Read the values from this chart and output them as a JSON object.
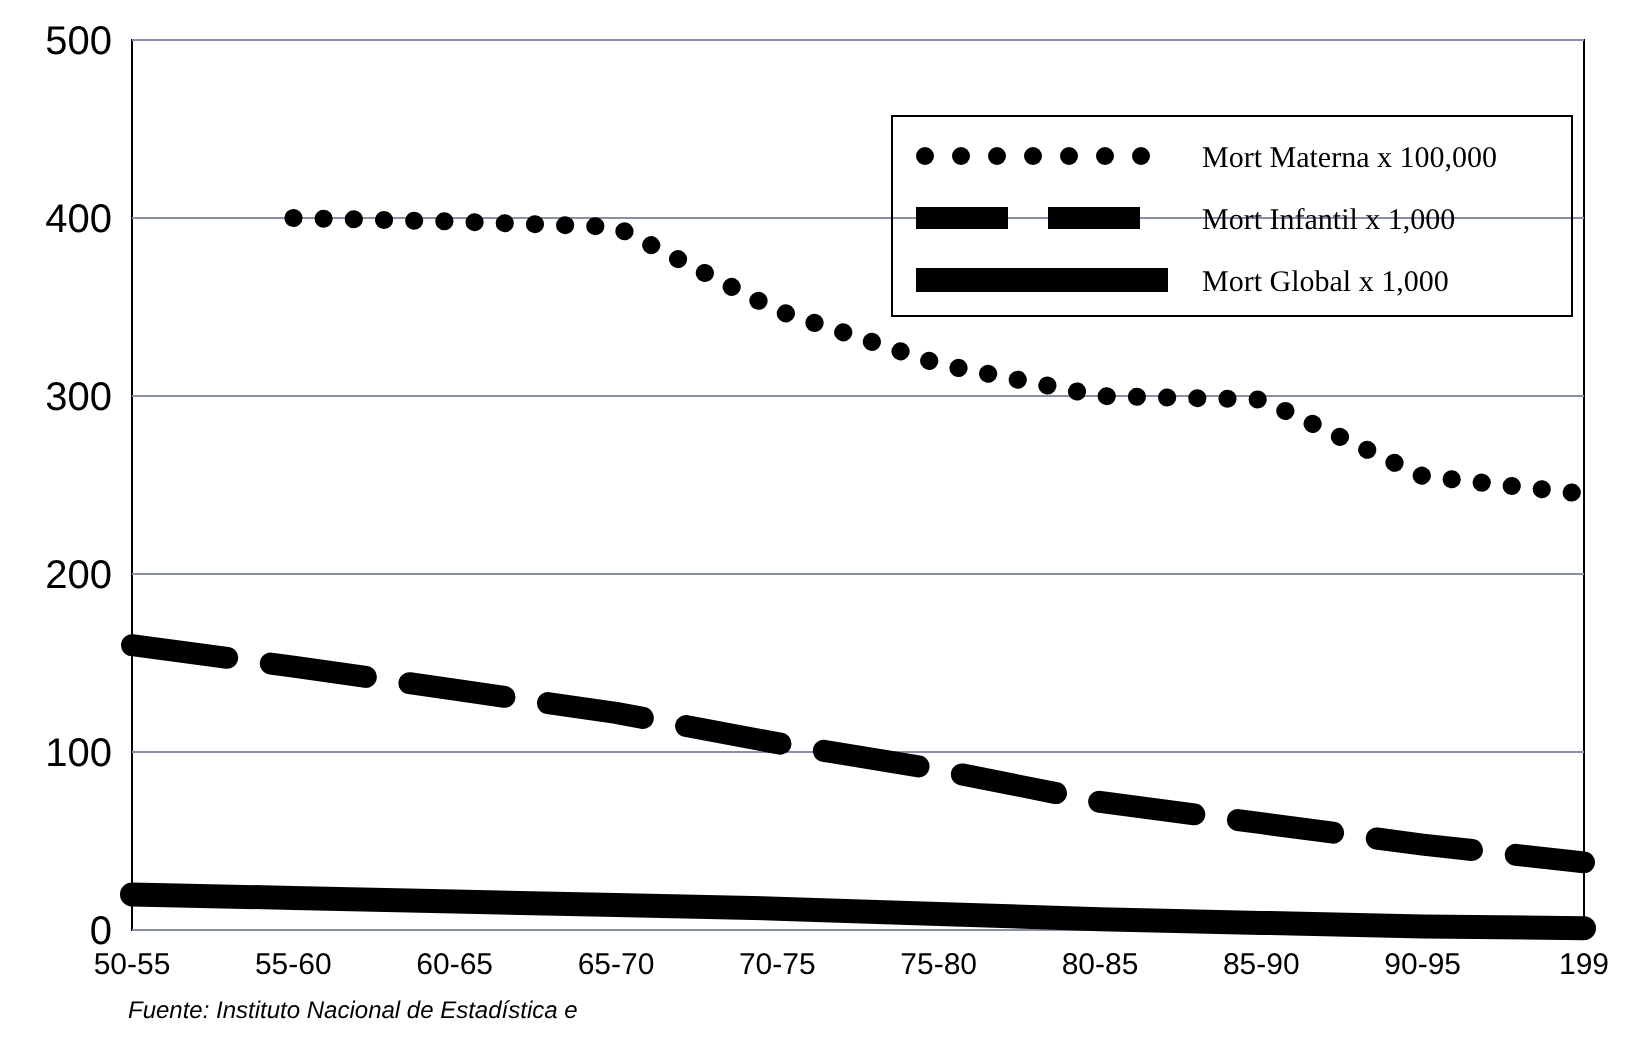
{
  "chart_data": {
    "type": "line",
    "categories": [
      "50-55",
      "55-60",
      "60-65",
      "65-70",
      "70-75",
      "75-80",
      "80-85",
      "85-90",
      "90-95",
      "199"
    ],
    "series": [
      {
        "name": "Mort Materna x 100,000",
        "color": "#000000",
        "line_style": "dotted",
        "values": [
          null,
          400,
          398,
          395,
          348,
          318,
          300,
          298,
          255,
          245
        ]
      },
      {
        "name": "Mort Infantil x 1,000",
        "color": "#000000",
        "line_style": "dashed",
        "values": [
          160,
          148,
          135,
          122,
          105,
          90,
          72,
          60,
          48,
          38
        ]
      },
      {
        "name": "Mort Global x 1,000",
        "color": "#000000",
        "line_style": "solid",
        "values": [
          20,
          18,
          16,
          14,
          12,
          9,
          6,
          4,
          2,
          1
        ]
      }
    ],
    "ylim": [
      0,
      500
    ],
    "yticks": [
      0,
      100,
      200,
      300,
      400,
      500
    ],
    "grid": "y",
    "legend": "top right",
    "marker": "none",
    "annotations": [
      "Fuente: Instituto Nacional de Estadística e"
    ]
  }
}
